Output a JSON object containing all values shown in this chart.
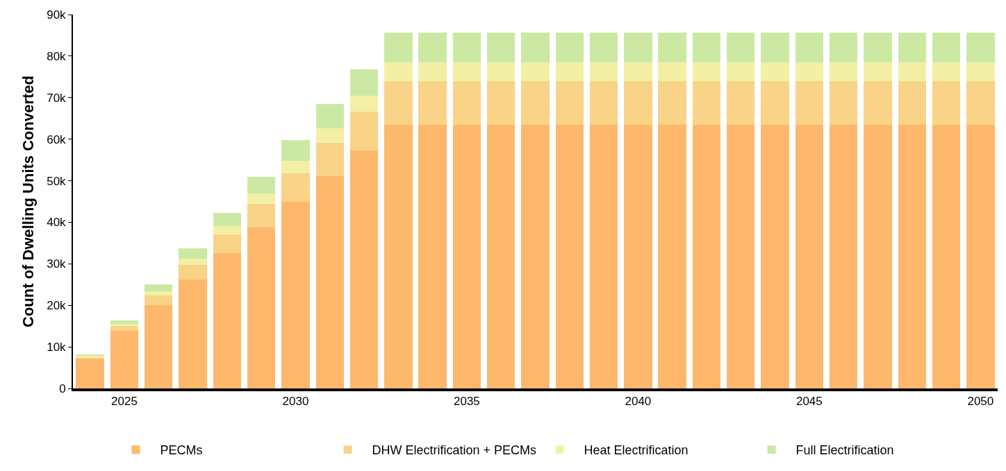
{
  "chart_data": {
    "type": "bar",
    "stacked": true,
    "ylabel": "Count of Dwelling Units Converted",
    "x": [
      2024,
      2025,
      2026,
      2027,
      2028,
      2029,
      2030,
      2031,
      2032,
      2033,
      2034,
      2035,
      2036,
      2037,
      2038,
      2039,
      2040,
      2041,
      2042,
      2043,
      2044,
      2045,
      2046,
      2047,
      2048,
      2049,
      2050
    ],
    "series": [
      {
        "name": "PECMs",
        "color": "#fdb86b",
        "values": [
          7.2,
          13.8,
          20.0,
          26.2,
          32.5,
          38.7,
          44.9,
          51.1,
          57.3,
          63.5,
          63.5,
          63.5,
          63.5,
          63.5,
          63.5,
          63.5,
          63.5,
          63.5,
          63.5,
          63.5,
          63.5,
          63.5,
          63.5,
          63.5,
          63.5,
          63.5,
          63.5
        ]
      },
      {
        "name": "DHW Electrification + PECMs",
        "color": "#f8d388",
        "values": [
          0.3,
          1.2,
          2.3,
          3.6,
          4.6,
          5.7,
          6.9,
          8.0,
          9.3,
          10.4,
          10.4,
          10.4,
          10.4,
          10.4,
          10.4,
          10.4,
          10.4,
          10.4,
          10.4,
          10.4,
          10.4,
          10.4,
          10.4,
          10.4,
          10.4,
          10.4,
          10.4
        ]
      },
      {
        "name": "Heat Electrification",
        "color": "#f3f0a5",
        "values": [
          0.3,
          0.6,
          1.1,
          1.4,
          2.0,
          2.5,
          3.0,
          3.6,
          3.9,
          4.5,
          4.5,
          4.5,
          4.5,
          4.5,
          4.5,
          4.5,
          4.5,
          4.5,
          4.5,
          4.5,
          4.5,
          4.5,
          4.5,
          4.5,
          4.5,
          4.5,
          4.5
        ]
      },
      {
        "name": "Full Electrification",
        "color": "#cce9a3",
        "values": [
          0.4,
          0.8,
          1.7,
          2.5,
          3.2,
          4.0,
          4.9,
          5.7,
          6.3,
          7.2,
          7.2,
          7.2,
          7.2,
          7.2,
          7.2,
          7.2,
          7.2,
          7.2,
          7.2,
          7.2,
          7.2,
          7.2,
          7.2,
          7.2,
          7.2,
          7.2,
          7.2
        ]
      }
    ],
    "xlim": [
      2023.5,
      2050.5
    ],
    "xticks": [
      2025,
      2030,
      2035,
      2040,
      2045,
      2050
    ],
    "ylim": [
      0,
      90
    ],
    "yticks": [
      0,
      {
        "value": 10,
        "label": "10k"
      },
      {
        "value": 20,
        "label": "20k"
      },
      {
        "value": 30,
        "label": "30k"
      },
      {
        "value": 40,
        "label": "40k"
      },
      {
        "value": 50,
        "label": "50k"
      },
      {
        "value": 60,
        "label": "60k"
      },
      {
        "value": 70,
        "label": "70k"
      },
      {
        "value": 80,
        "label": "80k"
      },
      {
        "value": 90,
        "label": "90k"
      }
    ],
    "grid": false,
    "legend": "bottom"
  }
}
